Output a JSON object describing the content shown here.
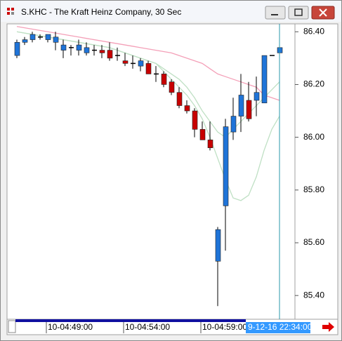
{
  "window_title": "S.KHC - The Kraft Heinz Company, 30 Sec",
  "chart_data": {
    "type": "candlestick",
    "open": [
      86.31,
      86.36,
      86.37,
      86.38,
      86.37,
      86.36,
      86.33,
      86.34,
      86.33,
      86.32,
      86.33,
      86.33,
      86.33,
      86.31,
      86.29,
      86.28,
      86.27,
      86.28,
      86.24,
      86.24,
      86.21,
      86.17,
      86.12,
      86.1,
      86.03,
      85.99,
      85.53,
      85.74,
      86.02,
      86.08,
      86.14,
      86.14,
      86.13,
      86.31,
      86.32
    ],
    "high": [
      86.37,
      86.38,
      86.4,
      86.39,
      86.39,
      86.4,
      86.37,
      86.35,
      86.37,
      86.36,
      86.35,
      86.35,
      86.36,
      86.34,
      86.32,
      86.31,
      86.3,
      86.29,
      86.27,
      86.25,
      86.22,
      86.19,
      86.14,
      86.11,
      86.06,
      86.06,
      85.66,
      86.07,
      86.15,
      86.24,
      86.21,
      86.23,
      86.31,
      86.31,
      86.36
    ],
    "low": [
      86.3,
      86.35,
      86.36,
      86.37,
      86.36,
      86.33,
      86.3,
      86.31,
      86.31,
      86.31,
      86.31,
      86.3,
      86.29,
      86.29,
      86.27,
      86.26,
      86.25,
      86.24,
      86.21,
      86.19,
      86.16,
      86.11,
      86.09,
      86.0,
      85.99,
      85.95,
      85.36,
      85.57,
      85.99,
      86.02,
      86.06,
      86.08,
      86.13,
      86.31,
      86.31
    ],
    "close": [
      86.36,
      86.37,
      86.39,
      86.38,
      86.39,
      86.38,
      86.35,
      86.34,
      86.35,
      86.34,
      86.33,
      86.32,
      86.3,
      86.31,
      86.28,
      86.28,
      86.29,
      86.24,
      86.24,
      86.2,
      86.17,
      86.12,
      86.1,
      86.03,
      85.99,
      85.96,
      85.65,
      86.04,
      86.08,
      86.16,
      86.07,
      86.17,
      86.31,
      86.31,
      86.34
    ],
    "up_color": "#1f74d8",
    "down_color": "#c80000",
    "flat_color": "#000000",
    "overlays": [
      {
        "color": "#f4a0b8",
        "values": [
          86.42,
          86.415,
          86.41,
          86.405,
          86.4,
          86.395,
          86.39,
          86.385,
          86.38,
          86.375,
          86.37,
          86.365,
          86.36,
          86.355,
          86.35,
          86.345,
          86.34,
          86.335,
          86.33,
          86.325,
          86.32,
          86.31,
          86.3,
          86.29,
          86.28,
          86.26,
          86.24,
          86.23,
          86.22,
          86.21,
          86.2,
          86.19,
          86.16,
          86.15,
          86.14
        ]
      },
      {
        "color": "#bfe0c4",
        "values": [
          86.4,
          86.395,
          86.39,
          86.385,
          86.38,
          86.375,
          86.37,
          86.365,
          86.36,
          86.355,
          86.35,
          86.345,
          86.34,
          86.33,
          86.32,
          86.31,
          86.3,
          86.29,
          86.28,
          86.26,
          86.24,
          86.22,
          86.19,
          86.15,
          86.1,
          86.06,
          86.02,
          86.0,
          86.03,
          86.06,
          86.09,
          86.12,
          86.15,
          86.18,
          86.21
        ]
      },
      {
        "color": "#bfe0c4",
        "values": [
          86.4,
          86.395,
          86.39,
          86.385,
          86.38,
          86.375,
          86.37,
          86.365,
          86.36,
          86.355,
          86.35,
          86.345,
          86.34,
          86.33,
          86.32,
          86.31,
          86.3,
          86.29,
          86.28,
          86.25,
          86.22,
          86.19,
          86.16,
          86.12,
          86.07,
          86.0,
          85.92,
          85.84,
          85.77,
          85.76,
          85.78,
          85.85,
          85.95,
          86.03,
          86.08
        ]
      }
    ],
    "ylim": [
      85.31,
      86.43
    ],
    "yticks": [
      {
        "value": 85.4,
        "label": "85.40"
      },
      {
        "value": 85.6,
        "label": "85.60"
      },
      {
        "value": 85.8,
        "label": "85.80"
      },
      {
        "value": 86.0,
        "label": "86.00"
      },
      {
        "value": 86.2,
        "label": "86.20"
      },
      {
        "value": 86.4,
        "label": "86.40"
      }
    ],
    "xticks": [
      {
        "value": 4,
        "label": "10-04:49:00"
      },
      {
        "value": 14,
        "label": "10-04:54:00"
      },
      {
        "value": 24,
        "label": "10-04:59:00"
      }
    ],
    "cursor": {
      "value": 34,
      "label": "9-12-16 22:34:00"
    }
  }
}
